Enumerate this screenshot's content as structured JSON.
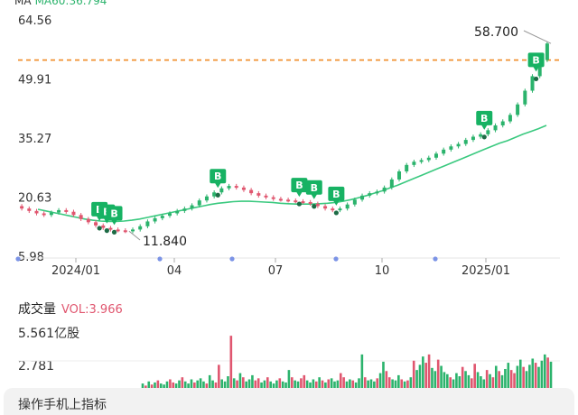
{
  "chart_data": [
    {
      "type": "line",
      "title": "",
      "top_label": "MA",
      "ma_text": "MA60:36.794",
      "y_ticks": [
        "64.56",
        "49.91",
        "35.27",
        "20.63",
        "5.98"
      ],
      "ylim": [
        5.98,
        64.56
      ],
      "x_ticks": [
        "2024/01",
        "04",
        "07",
        "10",
        "2025/01"
      ],
      "reference_line": 54.6,
      "annotations": [
        {
          "text": "58.700",
          "kind": "max"
        },
        {
          "text": "11.840",
          "kind": "min"
        }
      ],
      "buy_marker_label": "B",
      "series": [
        {
          "name": "price",
          "values": [
            18.4,
            17.8,
            17.2,
            16.6,
            16.2,
            16.8,
            17.4,
            17.0,
            16.2,
            15.2,
            14.4,
            13.6,
            13.0,
            12.6,
            12.4,
            12.2,
            12.6,
            13.4,
            14.6,
            15.4,
            16.0,
            16.6,
            17.2,
            17.8,
            18.6,
            19.8,
            20.8,
            21.8,
            22.8,
            23.4,
            23.0,
            22.4,
            21.6,
            21.0,
            20.6,
            20.2,
            20.0,
            19.8,
            19.6,
            19.4,
            19.0,
            18.4,
            17.8,
            17.4,
            17.8,
            18.8,
            20.0,
            21.0,
            21.6,
            22.0,
            23.0,
            25.0,
            27.0,
            28.6,
            29.4,
            29.8,
            30.4,
            31.4,
            32.4,
            33.2,
            33.8,
            34.8,
            35.6,
            36.2,
            37.2,
            38.4,
            39.4,
            41.0,
            43.6,
            47.0,
            50.6,
            54.6,
            58.7
          ]
        },
        {
          "name": "MA",
          "values": [
            17.6,
            17.2,
            16.8,
            16.4,
            16.0,
            15.6,
            15.2,
            14.9,
            14.7,
            14.6,
            14.6,
            14.7,
            14.9,
            15.2,
            15.6,
            16.0,
            16.4,
            16.8,
            17.2,
            17.6,
            18.0,
            18.4,
            18.8,
            19.1,
            19.3,
            19.5,
            19.6,
            19.6,
            19.5,
            19.4,
            19.3,
            19.1,
            19.0,
            18.9,
            18.9,
            18.9,
            19.0,
            19.1,
            19.3,
            19.6,
            20.0,
            20.5,
            21.0,
            21.6,
            22.2,
            22.9,
            23.6,
            24.4,
            25.2,
            26.0,
            26.8,
            27.6,
            28.4,
            29.2,
            30.0,
            30.8,
            31.6,
            32.4,
            33.2,
            34.0,
            34.6,
            35.4,
            36.2,
            36.9,
            37.6,
            38.4
          ]
        }
      ],
      "buy_markers": [
        11,
        12,
        13,
        27,
        38,
        40,
        43,
        63,
        70
      ]
    },
    {
      "type": "bar",
      "title": "成交量",
      "vol_text": "VOL:3.966",
      "y_ticks": [
        "5.561亿股",
        "2.781"
      ],
      "ylim": [
        0,
        5.561
      ],
      "colors": {
        "up": "#2bb36c",
        "down": "#e0566f"
      },
      "values": [
        0.6,
        0.4,
        0.8,
        0.5,
        0.7,
        0.9,
        0.6,
        0.5,
        0.8,
        1.0,
        0.7,
        0.6,
        0.9,
        1.2,
        0.8,
        0.6,
        1.0,
        0.7,
        0.9,
        1.1,
        0.8,
        0.6,
        1.4,
        0.9,
        0.7,
        2.4,
        1.0,
        0.8,
        1.3,
        5.2,
        1.1,
        0.9,
        1.6,
        1.2,
        0.8,
        1.0,
        1.4,
        0.9,
        1.1,
        0.7,
        0.9,
        1.2,
        0.8,
        0.6,
        0.9,
        1.1,
        0.8,
        0.7,
        1.9,
        1.2,
        0.9,
        0.8,
        1.1,
        1.4,
        0.9,
        0.7,
        1.0,
        0.8,
        1.2,
        0.9,
        0.7,
        1.0,
        1.1,
        0.8,
        0.9,
        1.6,
        1.2,
        0.8,
        1.0,
        0.9,
        0.7,
        1.1,
        3.4,
        1.2,
        0.9,
        1.0,
        0.8,
        1.1,
        1.6,
        2.7,
        1.8,
        1.2,
        1.0,
        0.9,
        1.4,
        1.0,
        0.8,
        0.9,
        1.2,
        2.8,
        1.9,
        2.4,
        3.2,
        2.6,
        3.4,
        2.1,
        1.8,
        2.9,
        2.3,
        1.7,
        1.5,
        1.2,
        1.0,
        1.6,
        1.3,
        2.2,
        1.8,
        1.4,
        1.1,
        2.5,
        1.7,
        1.3,
        1.0,
        1.9,
        1.5,
        1.2,
        2.3,
        1.8,
        1.4,
        2.0,
        2.6,
        1.9,
        1.6,
        2.3,
        2.9,
        2.2,
        1.8,
        2.4,
        3.0,
        2.6,
        2.2,
        2.8,
        3.4,
        3.1,
        2.7
      ],
      "down_index_mod": 4
    }
  ],
  "header": {
    "ma_prefix": "MA",
    "ma_value": "MA60:36.794"
  },
  "volume_header": {
    "title": "成交量",
    "vol": "VOL:3.966"
  },
  "bottom_panel": {
    "text": "操作手机上指标"
  }
}
